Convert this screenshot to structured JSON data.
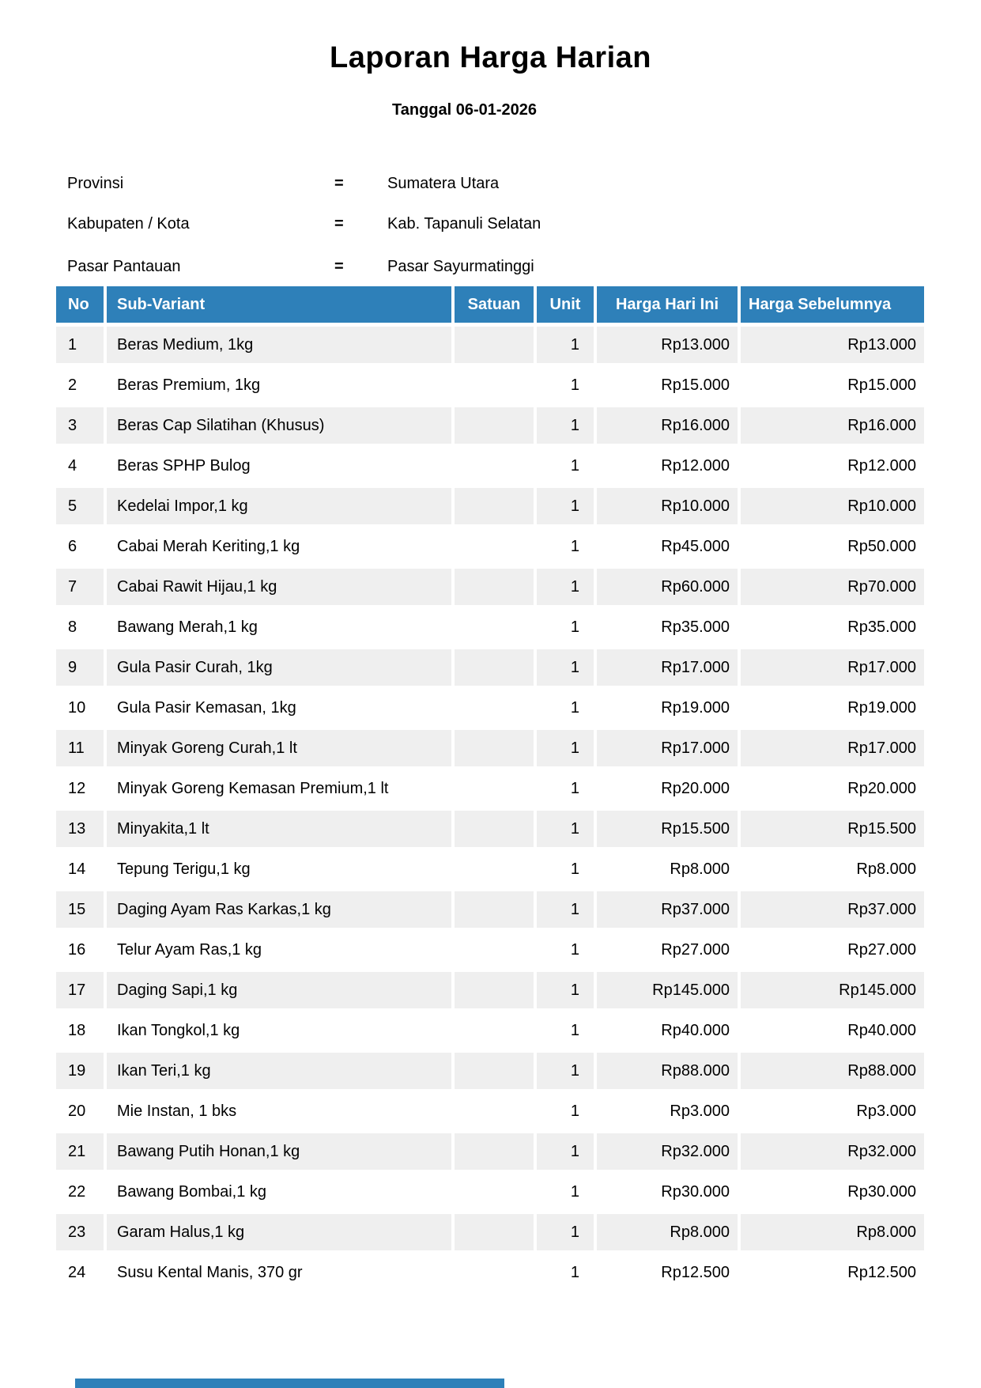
{
  "report": {
    "title": "Laporan Harga Harian",
    "date_line": "Tanggal 06-01-2026"
  },
  "info": [
    {
      "label": "Provinsi",
      "separator": "=",
      "value": "Sumatera Utara"
    },
    {
      "label": "Kabupaten / Kota",
      "separator": "=",
      "value": "Kab. Tapanuli Selatan"
    },
    {
      "label": "Pasar Pantauan",
      "separator": "=",
      "value": "Pasar Sayurmatinggi"
    }
  ],
  "table": {
    "headers": [
      "No",
      "Sub-Variant",
      "Satuan",
      "Unit",
      "Harga Hari Ini",
      "Harga Sebelumnya"
    ],
    "rows": [
      {
        "no": "1",
        "sub_variant": "Beras Medium, 1kg",
        "satuan": "",
        "unit": "1",
        "harga_hari_ini": "Rp13.000",
        "harga_sebelumnya": "Rp13.000"
      },
      {
        "no": "2",
        "sub_variant": "Beras Premium, 1kg",
        "satuan": "",
        "unit": "1",
        "harga_hari_ini": "Rp15.000",
        "harga_sebelumnya": "Rp15.000"
      },
      {
        "no": "3",
        "sub_variant": "Beras Cap Silatihan (Khusus)",
        "satuan": "",
        "unit": "1",
        "harga_hari_ini": "Rp16.000",
        "harga_sebelumnya": "Rp16.000"
      },
      {
        "no": "4",
        "sub_variant": "Beras SPHP Bulog",
        "satuan": "",
        "unit": "1",
        "harga_hari_ini": "Rp12.000",
        "harga_sebelumnya": "Rp12.000"
      },
      {
        "no": "5",
        "sub_variant": "Kedelai Impor,1 kg",
        "satuan": "",
        "unit": "1",
        "harga_hari_ini": "Rp10.000",
        "harga_sebelumnya": "Rp10.000"
      },
      {
        "no": "6",
        "sub_variant": "Cabai Merah Keriting,1 kg",
        "satuan": "",
        "unit": "1",
        "harga_hari_ini": "Rp45.000",
        "harga_sebelumnya": "Rp50.000"
      },
      {
        "no": "7",
        "sub_variant": "Cabai Rawit Hijau,1 kg",
        "satuan": "",
        "unit": "1",
        "harga_hari_ini": "Rp60.000",
        "harga_sebelumnya": "Rp70.000"
      },
      {
        "no": "8",
        "sub_variant": "Bawang Merah,1 kg",
        "satuan": "",
        "unit": "1",
        "harga_hari_ini": "Rp35.000",
        "harga_sebelumnya": "Rp35.000"
      },
      {
        "no": "9",
        "sub_variant": "Gula Pasir Curah, 1kg",
        "satuan": "",
        "unit": "1",
        "harga_hari_ini": "Rp17.000",
        "harga_sebelumnya": "Rp17.000"
      },
      {
        "no": "10",
        "sub_variant": "Gula Pasir Kemasan, 1kg",
        "satuan": "",
        "unit": "1",
        "harga_hari_ini": "Rp19.000",
        "harga_sebelumnya": "Rp19.000"
      },
      {
        "no": "11",
        "sub_variant": "Minyak Goreng Curah,1 lt",
        "satuan": "",
        "unit": "1",
        "harga_hari_ini": "Rp17.000",
        "harga_sebelumnya": "Rp17.000"
      },
      {
        "no": "12",
        "sub_variant": "Minyak Goreng Kemasan Premium,1 lt",
        "satuan": "",
        "unit": "1",
        "harga_hari_ini": "Rp20.000",
        "harga_sebelumnya": "Rp20.000"
      },
      {
        "no": "13",
        "sub_variant": "Minyakita,1 lt",
        "satuan": "",
        "unit": "1",
        "harga_hari_ini": "Rp15.500",
        "harga_sebelumnya": "Rp15.500"
      },
      {
        "no": "14",
        "sub_variant": "Tepung Terigu,1 kg",
        "satuan": "",
        "unit": "1",
        "harga_hari_ini": "Rp8.000",
        "harga_sebelumnya": "Rp8.000"
      },
      {
        "no": "15",
        "sub_variant": "Daging Ayam Ras Karkas,1 kg",
        "satuan": "",
        "unit": "1",
        "harga_hari_ini": "Rp37.000",
        "harga_sebelumnya": "Rp37.000"
      },
      {
        "no": "16",
        "sub_variant": "Telur Ayam Ras,1 kg",
        "satuan": "",
        "unit": "1",
        "harga_hari_ini": "Rp27.000",
        "harga_sebelumnya": "Rp27.000"
      },
      {
        "no": "17",
        "sub_variant": "Daging Sapi,1 kg",
        "satuan": "",
        "unit": "1",
        "harga_hari_ini": "Rp145.000",
        "harga_sebelumnya": "Rp145.000"
      },
      {
        "no": "18",
        "sub_variant": "Ikan Tongkol,1 kg",
        "satuan": "",
        "unit": "1",
        "harga_hari_ini": "Rp40.000",
        "harga_sebelumnya": "Rp40.000"
      },
      {
        "no": "19",
        "sub_variant": "Ikan Teri,1 kg",
        "satuan": "",
        "unit": "1",
        "harga_hari_ini": "Rp88.000",
        "harga_sebelumnya": "Rp88.000"
      },
      {
        "no": "20",
        "sub_variant": "Mie Instan, 1 bks",
        "satuan": "",
        "unit": "1",
        "harga_hari_ini": "Rp3.000",
        "harga_sebelumnya": "Rp3.000"
      },
      {
        "no": "21",
        "sub_variant": "Bawang Putih Honan,1 kg",
        "satuan": "",
        "unit": "1",
        "harga_hari_ini": "Rp32.000",
        "harga_sebelumnya": "Rp32.000"
      },
      {
        "no": "22",
        "sub_variant": "Bawang Bombai,1 kg",
        "satuan": "",
        "unit": "1",
        "harga_hari_ini": "Rp30.000",
        "harga_sebelumnya": "Rp30.000"
      },
      {
        "no": "23",
        "sub_variant": "Garam Halus,1 kg",
        "satuan": "",
        "unit": "1",
        "harga_hari_ini": "Rp8.000",
        "harga_sebelumnya": "Rp8.000"
      },
      {
        "no": "24",
        "sub_variant": "Susu Kental Manis, 370 gr",
        "satuan": "",
        "unit": "1",
        "harga_hari_ini": "Rp12.500",
        "harga_sebelumnya": "Rp12.500"
      }
    ]
  },
  "colors": {
    "header_bg": "#2E80B9",
    "header_text": "#FFFFFF",
    "stripe_bg": "#EFEFEF",
    "body_text": "#000000"
  }
}
